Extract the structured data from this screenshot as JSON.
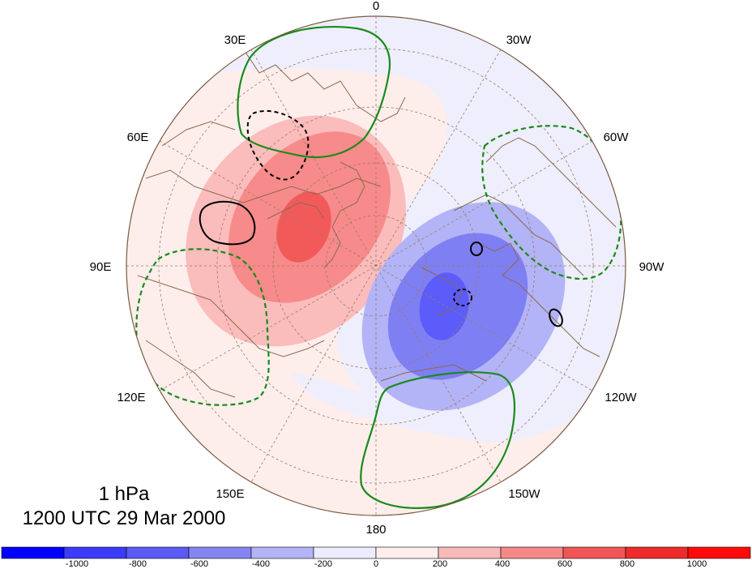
{
  "map": {
    "projection": "polar stereographic (north pole)",
    "level_label": "1 hPa",
    "time_label": "1200 UTC 29 Mar 2000",
    "longitude_labels": {
      "lon_0": "0",
      "lon_30w": "30W",
      "lon_60w": "60W",
      "lon_90w": "90W",
      "lon_120w": "120W",
      "lon_150w": "150W",
      "lon_180": "180",
      "lon_150e": "150E",
      "lon_120e": "120E",
      "lon_90e": "90E",
      "lon_60e": "60E",
      "lon_30e": "30E"
    },
    "anomaly_colors": {
      "neg_1000": "#4444ff",
      "neg_800": "#5c5cfa",
      "neg_600": "#7f7ff4",
      "neg_400": "#b3b3f7",
      "neg_200": "#eeeefd",
      "pos_0": "#fdeeec",
      "pos_200": "#fbbcbc",
      "pos_400": "#f78a8a",
      "pos_600": "#f25a5a",
      "pos_800": "#ef2c2c"
    },
    "contour_colors": {
      "green": "#1a8a1a",
      "black": "#000000",
      "coast": "#8b6a4f",
      "grid": "#9a7a60"
    }
  },
  "colorbar": {
    "labels": {
      "l0": "-1000",
      "l1": "-800",
      "l2": "-600",
      "l3": "-400",
      "l4": "-200",
      "l5": "0",
      "l6": "200",
      "l7": "400",
      "l8": "600",
      "l9": "800",
      "l10": "1000"
    },
    "colors": [
      "#0000ff",
      "#3b3bf9",
      "#5a5af4",
      "#8585f2",
      "#b3b3f6",
      "#ececfd",
      "#fdeeec",
      "#fab9b9",
      "#f68888",
      "#f25555",
      "#ee2a2a",
      "#ff0a0a"
    ]
  }
}
